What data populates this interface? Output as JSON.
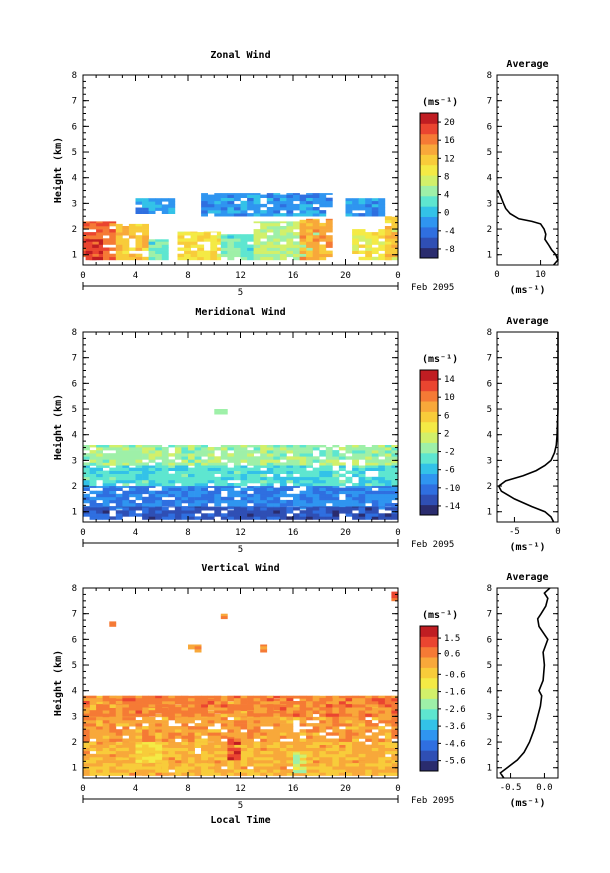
{
  "colors": {
    "scale": [
      "#2a2c6e",
      "#2f4fb4",
      "#2f6fe0",
      "#2f95f0",
      "#33c2e8",
      "#5ee6d0",
      "#9ef0a8",
      "#d2f06a",
      "#f4ea45",
      "#f8cc3a",
      "#f8a83a",
      "#f57a35",
      "#ea4530",
      "#c01d22"
    ]
  },
  "chart_data": [
    {
      "type": "heatmap",
      "title": "Zonal Wind",
      "ylabel": "Height (km)",
      "xlabel": "",
      "xlim": [
        0,
        24
      ],
      "ylim": [
        0.6,
        8
      ],
      "xticks": [
        "0",
        "4",
        "8",
        "12",
        "16",
        "20",
        "0"
      ],
      "yticks": [
        "1",
        "2",
        "3",
        "4",
        "5",
        "6",
        "7",
        "8"
      ],
      "date_marker": "5",
      "date_label": "Feb 2095",
      "unit": "(ms⁻¹)",
      "colorbar_ticks": [
        "20",
        "16",
        "12",
        "8",
        "4",
        "0",
        "-4",
        "-8"
      ],
      "colorbar_range": [
        -10,
        22
      ],
      "average_title": "Average",
      "average_xticks": [
        "0",
        "10"
      ],
      "average_xlim": [
        0,
        14
      ],
      "average_unit": "(ms⁻¹)",
      "average_profile": {
        "height": [
          0.6,
          0.8,
          1.0,
          1.2,
          1.4,
          1.6,
          1.8,
          2.0,
          2.2,
          2.3,
          2.4,
          2.6,
          2.8,
          3.0,
          3.2,
          3.3,
          3.4,
          3.5
        ],
        "value": [
          13,
          14,
          13.5,
          12.5,
          11.8,
          11,
          11.2,
          10.8,
          10,
          8,
          5,
          3,
          2,
          1.5,
          1,
          0.8,
          0.5,
          0.2
        ]
      },
      "regions": [
        {
          "t": [
            0,
            2.5
          ],
          "h": [
            0.8,
            2.3
          ],
          "v": 17
        },
        {
          "t": [
            0.2,
            1.5
          ],
          "h": [
            0.8,
            1.6
          ],
          "v": 20
        },
        {
          "t": [
            2.5,
            5
          ],
          "h": [
            0.8,
            2.2
          ],
          "v": 12
        },
        {
          "t": [
            5,
            6.5
          ],
          "h": [
            0.8,
            1.6
          ],
          "v": 3
        },
        {
          "t": [
            7.2,
            10.5
          ],
          "h": [
            0.8,
            1.9
          ],
          "v": 10
        },
        {
          "t": [
            10.5,
            13
          ],
          "h": [
            0.8,
            1.8
          ],
          "v": 3
        },
        {
          "t": [
            13,
            18
          ],
          "h": [
            0.8,
            2.3
          ],
          "v": 6
        },
        {
          "t": [
            16.5,
            19
          ],
          "h": [
            0.8,
            2.4
          ],
          "v": 14
        },
        {
          "t": [
            20.5,
            24
          ],
          "h": [
            0.8,
            2.0
          ],
          "v": 9
        },
        {
          "t": [
            23,
            24
          ],
          "h": [
            0.8,
            2.5
          ],
          "v": 12
        },
        {
          "t": [
            4,
            7
          ],
          "h": [
            2.6,
            3.2
          ],
          "v": -2
        },
        {
          "t": [
            9,
            19
          ],
          "h": [
            2.5,
            3.4
          ],
          "v": -2
        },
        {
          "t": [
            20,
            23
          ],
          "h": [
            2.5,
            3.2
          ],
          "v": -2
        }
      ]
    },
    {
      "type": "heatmap",
      "title": "Meridional Wind",
      "ylabel": "Height (km)",
      "xlabel": "",
      "xlim": [
        0,
        24
      ],
      "ylim": [
        0.6,
        8
      ],
      "xticks": [
        "0",
        "4",
        "8",
        "12",
        "16",
        "20",
        "0"
      ],
      "yticks": [
        "1",
        "2",
        "3",
        "4",
        "5",
        "6",
        "7",
        "8"
      ],
      "date_marker": "5",
      "date_label": "Feb 2095",
      "unit": "(ms⁻¹)",
      "colorbar_ticks": [
        "14",
        "10",
        "6",
        "2",
        "-2",
        "-6",
        "-10",
        "-14"
      ],
      "colorbar_range": [
        -16,
        16
      ],
      "average_title": "Average",
      "average_xticks": [
        "-5",
        "0"
      ],
      "average_xlim": [
        -7,
        0
      ],
      "average_unit": "(ms⁻¹)",
      "average_profile": {
        "height": [
          0.6,
          0.8,
          1.0,
          1.2,
          1.5,
          1.8,
          2.0,
          2.2,
          2.4,
          2.6,
          2.8,
          3.0,
          3.3,
          3.6,
          4.0,
          5.0,
          6.0,
          7.0,
          8.0
        ],
        "value": [
          -0.5,
          -0.8,
          -1.5,
          -3,
          -5,
          -6.5,
          -6.8,
          -6,
          -4,
          -2.5,
          -1.5,
          -0.8,
          -0.4,
          -0.2,
          -0.1,
          0,
          0,
          0,
          0
        ]
      },
      "regions": [
        {
          "t": [
            0,
            24
          ],
          "h": [
            2.8,
            3.6
          ],
          "v": -1
        },
        {
          "t": [
            0,
            24
          ],
          "h": [
            2.0,
            2.8
          ],
          "v": -4
        },
        {
          "t": [
            0,
            24
          ],
          "h": [
            1.1,
            2.0
          ],
          "v": -9
        },
        {
          "t": [
            0,
            24
          ],
          "h": [
            0.7,
            1.2
          ],
          "v": -12
        },
        {
          "t": [
            10,
            11
          ],
          "h": [
            4.8,
            5.0
          ],
          "v": -2
        }
      ]
    },
    {
      "type": "heatmap",
      "title": "Vertical Wind",
      "ylabel": "Height (km)",
      "xlabel": "Local Time",
      "xlim": [
        0,
        24
      ],
      "ylim": [
        0.6,
        8
      ],
      "xticks": [
        "0",
        "4",
        "8",
        "12",
        "16",
        "20",
        "0"
      ],
      "yticks": [
        "1",
        "2",
        "3",
        "4",
        "5",
        "6",
        "7",
        "8"
      ],
      "date_marker": "5",
      "date_label": "Feb 2095",
      "unit": "(ms⁻¹)",
      "colorbar_ticks": [
        "1.5",
        "0.6",
        "-0.6",
        "-1.6",
        "-2.6",
        "-3.6",
        "-4.6",
        "-5.6"
      ],
      "colorbar_range": [
        -6.2,
        2.2
      ],
      "average_title": "Average",
      "average_xticks": [
        "-0.5",
        "0.0"
      ],
      "average_xlim": [
        -0.7,
        0.2
      ],
      "average_unit": "(ms⁻¹)",
      "average_profile": {
        "height": [
          0.6,
          0.8,
          1.0,
          1.3,
          1.6,
          2.0,
          2.5,
          3.0,
          3.4,
          3.8,
          4.0,
          4.4,
          5.0,
          5.5,
          6.0,
          6.5,
          6.8,
          7.0,
          7.3,
          7.6,
          7.8,
          8.0
        ],
        "value": [
          -0.6,
          -0.65,
          -0.55,
          -0.4,
          -0.3,
          -0.22,
          -0.15,
          -0.1,
          -0.06,
          -0.04,
          -0.08,
          -0.02,
          0,
          -0.02,
          0.05,
          -0.08,
          -0.1,
          -0.05,
          0.02,
          0.05,
          0,
          0.08
        ]
      },
      "regions": [
        {
          "t": [
            0,
            24
          ],
          "h": [
            0.7,
            3.8
          ],
          "v": 0.2
        },
        {
          "t": [
            0,
            24
          ],
          "h": [
            3.0,
            3.8
          ],
          "v": 0.6
        },
        {
          "t": [
            0,
            24
          ],
          "h": [
            0.7,
            2.0
          ],
          "v": -0.2
        },
        {
          "t": [
            11,
            12
          ],
          "h": [
            1.3,
            2.2
          ],
          "v": 1.2
        },
        {
          "t": [
            16,
            17
          ],
          "h": [
            0.8,
            1.6
          ],
          "v": -1.8
        },
        {
          "t": [
            4,
            6
          ],
          "h": [
            1.2,
            2.0
          ],
          "v": -0.6
        },
        {
          "t": [
            8,
            9
          ],
          "h": [
            5.5,
            5.8
          ],
          "v": 0.4
        },
        {
          "t": [
            2,
            2.5
          ],
          "h": [
            6.5,
            6.7
          ],
          "v": 0.4
        },
        {
          "t": [
            10.5,
            11
          ],
          "h": [
            6.8,
            7.0
          ],
          "v": 0.4
        },
        {
          "t": [
            13.5,
            14
          ],
          "h": [
            5.5,
            5.8
          ],
          "v": 0.4
        },
        {
          "t": [
            23.5,
            24
          ],
          "h": [
            7.5,
            7.9
          ],
          "v": 1.0
        }
      ]
    }
  ]
}
